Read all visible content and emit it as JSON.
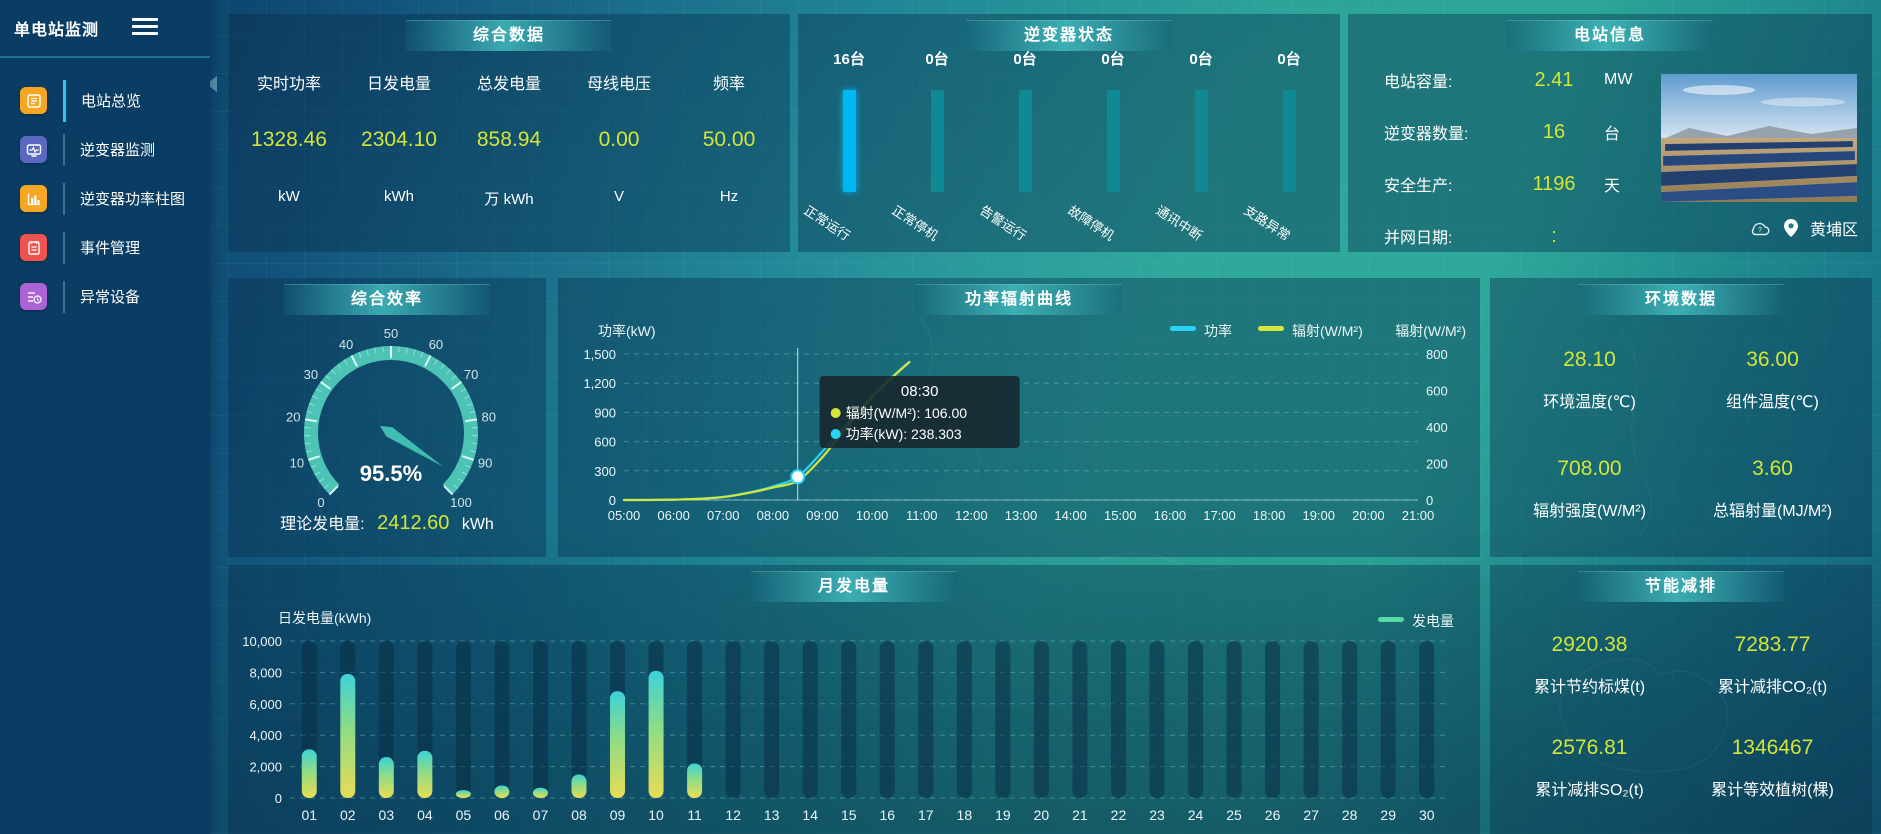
{
  "sidebar": {
    "title": "单电站监测",
    "items": [
      {
        "label": "电站总览",
        "icon": "station-overview-icon",
        "color": "#f5a623",
        "active": true
      },
      {
        "label": "逆变器监测",
        "icon": "inverter-monitor-icon",
        "color": "#5a68c0",
        "active": false
      },
      {
        "label": "逆变器功率柱图",
        "icon": "inverter-power-bars-icon",
        "color": "#f5a623",
        "active": false
      },
      {
        "label": "事件管理",
        "icon": "event-management-icon",
        "color": "#ef5350",
        "active": false
      },
      {
        "label": "异常设备",
        "icon": "abnormal-device-icon",
        "color": "#ab63d6",
        "active": false
      }
    ]
  },
  "panels": {
    "summary": {
      "title": "综合数据",
      "metrics": [
        {
          "label": "实时功率",
          "value": "1328.46",
          "unit": "kW"
        },
        {
          "label": "日发电量",
          "value": "2304.10",
          "unit": "kWh"
        },
        {
          "label": "总发电量",
          "value": "858.94",
          "unit": "万 kWh"
        },
        {
          "label": "母线电压",
          "value": "0.00",
          "unit": "V"
        },
        {
          "label": "频率",
          "value": "50.00",
          "unit": "Hz"
        }
      ]
    },
    "inverter_status": {
      "title": "逆变器状态",
      "items": [
        {
          "count": "16台",
          "label": "正常运行",
          "highlight": true
        },
        {
          "count": "0台",
          "label": "正常停机",
          "highlight": false
        },
        {
          "count": "0台",
          "label": "告警运行",
          "highlight": false
        },
        {
          "count": "0台",
          "label": "故障停机",
          "highlight": false
        },
        {
          "count": "0台",
          "label": "通讯中断",
          "highlight": false
        },
        {
          "count": "0台",
          "label": "支路异常",
          "highlight": false
        }
      ]
    },
    "station_info": {
      "title": "电站信息",
      "rows": [
        {
          "label": "电站容量:",
          "value": "2.41",
          "unit": "MW"
        },
        {
          "label": "逆变器数量:",
          "value": "16",
          "unit": "台"
        },
        {
          "label": "安全生产:",
          "value": "1196",
          "unit": "天"
        },
        {
          "label": "并网日期:",
          "value": ":",
          "unit": ""
        }
      ],
      "location": "黄埔区"
    },
    "efficiency": {
      "title": "综合效率",
      "footer_label": "理论发电量:",
      "footer_value": "2412.60",
      "footer_unit": "kWh"
    },
    "power_curve": {
      "title": "功率辐射曲线"
    },
    "environment": {
      "title": "环境数据",
      "metrics": [
        {
          "value": "28.10",
          "label": "环境温度(℃)"
        },
        {
          "value": "36.00",
          "label": "组件温度(℃)"
        },
        {
          "value": "708.00",
          "label": "辐射强度(W/M²)"
        },
        {
          "value": "3.60",
          "label": "总辐射量(MJ/M²)"
        }
      ]
    },
    "monthly": {
      "title": "月发电量"
    },
    "saving": {
      "title": "节能减排",
      "metrics": [
        {
          "value": "2920.38",
          "label": "累计节约标煤(t)"
        },
        {
          "value": "7283.77",
          "label": "累计减排CO₂(t)"
        },
        {
          "value": "2576.81",
          "label": "累计减排SO₂(t)"
        },
        {
          "value": "1346467",
          "label": "累计等效植树(棵)"
        }
      ]
    }
  },
  "colors": {
    "accent_value": "#d3e635",
    "bar_highlight": "#00b6f3",
    "bar_normal": "#0f8a94",
    "power_line": "#29d3f5",
    "radiation_line": "#d6e53a",
    "gauge_band": "#4cc3b5"
  },
  "chart_data": [
    {
      "id": "inverter_status",
      "type": "bar",
      "title": "逆变器状态",
      "categories": [
        "正常运行",
        "正常停机",
        "告警运行",
        "故障停机",
        "通讯中断",
        "支路异常"
      ],
      "values": [
        16,
        0,
        0,
        0,
        0,
        0
      ],
      "unit": "台"
    },
    {
      "id": "efficiency_gauge",
      "type": "gauge",
      "title": "综合效率",
      "value": 95.5,
      "display": "95.5%",
      "min": 0,
      "max": 100,
      "tick_labels": [
        0,
        10,
        20,
        30,
        40,
        50,
        60,
        70,
        80,
        90,
        100
      ]
    },
    {
      "id": "power_radiation",
      "type": "line",
      "title": "功率辐射曲线",
      "ylabel_left": "功率(kW)",
      "ylim_left": [
        0,
        1500
      ],
      "yticks_left": [
        0,
        300,
        600,
        900,
        1200,
        1500
      ],
      "ylabel_right": "辐射(W/M²)",
      "ylim_right": [
        0,
        800
      ],
      "yticks_right": [
        0,
        200,
        400,
        600,
        800
      ],
      "xticks": [
        "05:00",
        "06:00",
        "07:00",
        "08:00",
        "09:00",
        "10:00",
        "11:00",
        "12:00",
        "13:00",
        "14:00",
        "15:00",
        "16:00",
        "17:00",
        "18:00",
        "19:00",
        "20:00",
        "21:00"
      ],
      "series": [
        {
          "name": "功率",
          "color": "#29d3f5",
          "axis": "left",
          "points": [
            [
              "05:00",
              0
            ],
            [
              "05:30",
              1
            ],
            [
              "06:00",
              4
            ],
            [
              "06:30",
              12
            ],
            [
              "07:00",
              32
            ],
            [
              "07:30",
              75
            ],
            [
              "08:00",
              140
            ],
            [
              "08:30",
              238.3
            ],
            [
              "09:00",
              500
            ],
            [
              "09:30",
              790
            ],
            [
              "10:00",
              1060
            ],
            [
              "10:30",
              1310
            ],
            [
              "10:45",
              1420
            ]
          ]
        },
        {
          "name": "辐射(W/M²)",
          "color": "#d6e53a",
          "axis": "right",
          "points": [
            [
              "05:00",
              0
            ],
            [
              "05:30",
              0
            ],
            [
              "06:00",
              2
            ],
            [
              "06:30",
              6
            ],
            [
              "07:00",
              16
            ],
            [
              "07:30",
              38
            ],
            [
              "08:00",
              68
            ],
            [
              "08:30",
              106
            ],
            [
              "09:00",
              235
            ],
            [
              "09:30",
              405
            ],
            [
              "10:00",
              565
            ],
            [
              "10:30",
              695
            ],
            [
              "10:45",
              755
            ]
          ]
        }
      ],
      "tooltip": {
        "time": "08:30",
        "rows": [
          {
            "name": "辐射(W/M²)",
            "value": "106.00",
            "color": "#d6e53a"
          },
          {
            "name": "功率(kW)",
            "value": "238.303",
            "color": "#29d3f5"
          }
        ],
        "marker": {
          "x": "08:30",
          "power": 238.3
        }
      },
      "legend": [
        "功率",
        "辐射(W/M²)"
      ]
    },
    {
      "id": "monthly_generation",
      "type": "bar",
      "title": "月发电量",
      "ylabel": "日发电量(kWh)",
      "ylim": [
        0,
        10000
      ],
      "yticks": [
        0,
        2000,
        4000,
        6000,
        8000,
        10000
      ],
      "categories": [
        "01",
        "02",
        "03",
        "04",
        "05",
        "06",
        "07",
        "08",
        "09",
        "10",
        "11",
        "12",
        "13",
        "14",
        "15",
        "16",
        "17",
        "18",
        "19",
        "20",
        "21",
        "22",
        "23",
        "24",
        "25",
        "26",
        "27",
        "28",
        "29",
        "30"
      ],
      "values": [
        3100,
        7900,
        2600,
        3000,
        500,
        800,
        650,
        1500,
        6800,
        8100,
        2200,
        0,
        0,
        0,
        0,
        0,
        0,
        0,
        0,
        0,
        0,
        0,
        0,
        0,
        0,
        0,
        0,
        0,
        0,
        0
      ],
      "legend": [
        "发电量"
      ]
    }
  ]
}
